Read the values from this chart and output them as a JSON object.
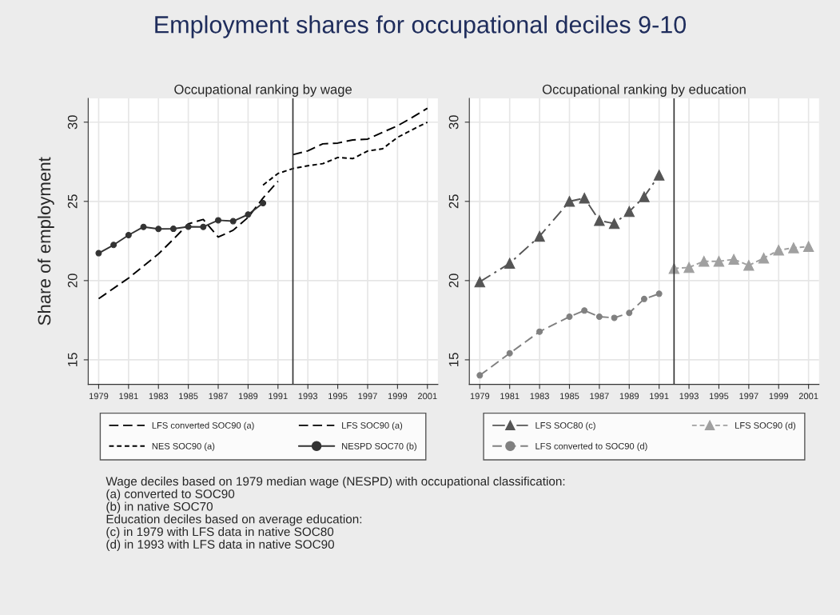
{
  "chart_data": [
    {
      "type": "line",
      "title": "Employment shares for occupational deciles 9-10",
      "subtitle": "Occupational ranking by wage",
      "ylabel": "Share of employment",
      "xlim": [
        1978.3,
        2001.7
      ],
      "xticks": [
        1979,
        1981,
        1983,
        1985,
        1987,
        1989,
        1991,
        1993,
        1995,
        1997,
        1999,
        2001
      ],
      "ylim": [
        13.45,
        31.5
      ],
      "yticks": [
        15,
        20,
        25,
        30
      ],
      "grid": true,
      "legend": "bottom",
      "ref_lines": [
        {
          "axis": "x",
          "value": 1992,
          "color": "#333333"
        }
      ],
      "series": [
        {
          "name": "LFS converted SOC90 (a)",
          "color": "#000000",
          "line_style": "dashed",
          "marker": "none",
          "x": [
            1979,
            1981,
            1983,
            1984,
            1985,
            1986,
            1987,
            1988,
            1989,
            1990,
            1991
          ],
          "values": [
            18.86,
            20.16,
            21.68,
            22.61,
            23.58,
            23.86,
            22.75,
            23.18,
            23.99,
            25.21,
            26.27
          ]
        },
        {
          "name": "LFS SOC90 (a)",
          "color": "#000000",
          "line_style": "dashed",
          "marker": "none",
          "x": [
            1992,
            1993,
            1994,
            1995,
            1996,
            1997,
            1998,
            1999,
            2000,
            2001
          ],
          "values": [
            27.95,
            28.19,
            28.63,
            28.68,
            28.88,
            28.93,
            29.36,
            29.77,
            30.31,
            30.88
          ]
        },
        {
          "name": "NES SOC90 (a)",
          "color": "#000000",
          "line_style": "dotted",
          "marker": "none",
          "x": [
            1990,
            1991,
            1992,
            1993,
            1994,
            1995,
            1996,
            1997,
            1998,
            1999,
            2000,
            2001
          ],
          "values": [
            26.03,
            26.76,
            27.07,
            27.25,
            27.38,
            27.77,
            27.7,
            28.18,
            28.32,
            29.04,
            29.53,
            30.0
          ]
        },
        {
          "name": "NESPD SOC70 (b)",
          "color": "#333333",
          "line_style": "solid",
          "marker": "circle",
          "x": [
            1979,
            1980,
            1981,
            1982,
            1983,
            1984,
            1985,
            1986,
            1987,
            1988,
            1989,
            1990
          ],
          "values": [
            21.73,
            22.25,
            22.87,
            23.39,
            23.26,
            23.27,
            23.4,
            23.39,
            23.81,
            23.75,
            24.17,
            24.89
          ]
        }
      ],
      "annotations": [
        "Wage deciles based on 1979 median wage (NESPD) with occupational classification:",
        "(a) converted to SOC90",
        "(b) in native SOC70",
        "Education deciles based on average education:",
        "(c) in 1979 with LFS data in native SOC80",
        "(d) in 1993 with LFS data in native SOC90"
      ]
    },
    {
      "type": "line",
      "subtitle": "Occupational ranking by education",
      "xlim": [
        1978.3,
        2001.7
      ],
      "xticks": [
        1979,
        1981,
        1983,
        1985,
        1987,
        1989,
        1991,
        1993,
        1995,
        1997,
        1999,
        2001
      ],
      "ylim": [
        13.45,
        31.5
      ],
      "yticks": [
        15,
        20,
        25,
        30
      ],
      "grid": true,
      "legend": "bottom",
      "ref_lines": [
        {
          "axis": "x",
          "value": 1992,
          "color": "#333333"
        }
      ],
      "series": [
        {
          "name": "LFS SOC80 (c)",
          "color": "#555555",
          "line_style": "dashdot",
          "marker": "triangle",
          "x": [
            1979,
            1981,
            1983,
            1985,
            1986,
            1987,
            1988,
            1989,
            1990,
            1991
          ],
          "values": [
            19.92,
            21.09,
            22.8,
            25.0,
            25.21,
            23.79,
            23.6,
            24.36,
            25.29,
            26.66
          ]
        },
        {
          "name": "LFS SOC90 (d)",
          "color": "#a0a0a0",
          "line_style": "dotted",
          "marker": "triangle",
          "x": [
            1992,
            1993,
            1994,
            1995,
            1996,
            1997,
            1998,
            1999,
            2000,
            2001
          ],
          "values": [
            20.77,
            20.83,
            21.22,
            21.22,
            21.34,
            20.96,
            21.42,
            21.92,
            22.07,
            22.15
          ]
        },
        {
          "name": "LFS converted to SOC90 (d)",
          "color": "#808080",
          "line_style": "dashed",
          "marker": "circle",
          "x": [
            1979,
            1981,
            1983,
            1985,
            1986,
            1987,
            1988,
            1989,
            1990,
            1991
          ],
          "values": [
            14.02,
            15.41,
            16.78,
            17.72,
            18.11,
            17.72,
            17.65,
            17.96,
            18.84,
            19.17
          ]
        }
      ]
    }
  ]
}
